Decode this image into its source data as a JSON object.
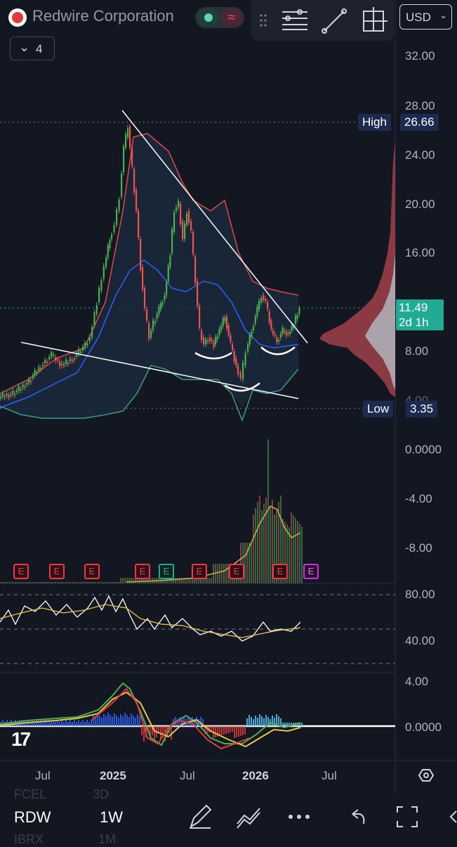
{
  "header": {
    "title": "Redwire Corporation",
    "collapse_count": "4",
    "currency": "USD"
  },
  "price_axis": {
    "labels": [
      "32.00",
      "28.00",
      "24.00",
      "20.00",
      "16.00",
      "8.00",
      "4.00",
      "0.0000",
      "-4.00",
      "-8.00"
    ]
  },
  "markers": {
    "high_label": "High",
    "high_value": "26.66",
    "low_label": "Low",
    "low_value": "3.35",
    "last_price": "11.49",
    "countdown": "2d 1h"
  },
  "rsi_axis": {
    "labels": [
      "80.00",
      "40.00"
    ]
  },
  "macd_axis": {
    "labels": [
      "4.00",
      "0.0000"
    ]
  },
  "earnings_labels": [
    "E",
    "E",
    "E",
    "E",
    "E",
    "E",
    "E",
    "E",
    "E"
  ],
  "time_axis": {
    "labels": [
      "Jul",
      "2025",
      "Jul",
      "2026",
      "Jul"
    ]
  },
  "bottom_bar": {
    "symbol": "RDW",
    "interval": "1W",
    "ghost_symbol_top": "FCEL",
    "ghost_interval_top": "3D",
    "ghost_symbol_bottom": "IBRX",
    "ghost_interval_bottom": "1M"
  },
  "colors": {
    "background": "#131722",
    "up_candle": "#4caf50",
    "down_candle": "#ef5350",
    "bb_upper": "#e04848",
    "bb_mid": "#2962ff",
    "bb_lower": "#3c9c86",
    "last_price": "#22ab94"
  },
  "icons": [
    "logo-icon",
    "toggle-dot-icon",
    "indicator-wave-icon",
    "drag-handle-icon",
    "horizontal-lines-icon",
    "trend-line-icon",
    "crosshair-box-icon",
    "chevron-down-icon",
    "settings-icon",
    "pencil-icon",
    "chart-type-icon",
    "more-icon",
    "undo-icon",
    "fullscreen-icon",
    "tv-logo-icon"
  ]
}
